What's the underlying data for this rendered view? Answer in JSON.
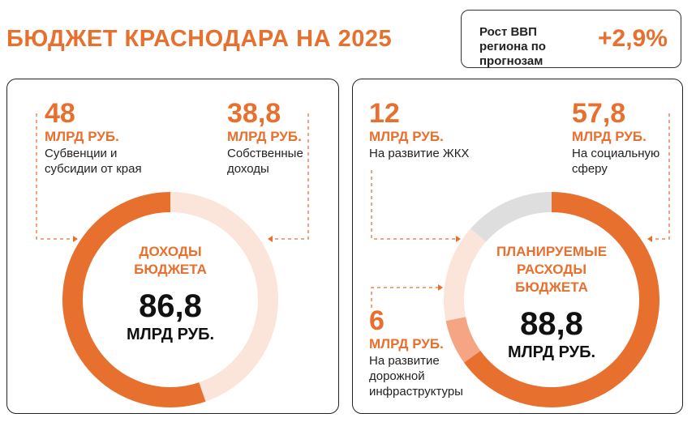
{
  "header": {
    "title": "БЮДЖЕТ КРАСНОДАРА НА 2025"
  },
  "gdp": {
    "label": "Рост ВВП региона по прогнозам",
    "value": "+2,9%"
  },
  "chart_data": [
    {
      "type": "pie",
      "center_title": "ДОХОДЫ БЮДЖЕТА",
      "total": 86.8,
      "total_label": "86,8",
      "unit": "МЛРД РУБ.",
      "categories": [
        "Собственные доходы",
        "Субвенции и субсидии от края"
      ],
      "values": [
        38.8,
        48
      ],
      "value_labels": [
        "38,8",
        "48"
      ],
      "colors": [
        "#fbe4da",
        "#e8702f"
      ]
    },
    {
      "type": "pie",
      "center_title": "ПЛАНИРУЕМЫЕ РАСХОДЫ БЮДЖЕТА",
      "total": 88.8,
      "total_label": "88,8",
      "unit": "МЛРД РУБ.",
      "categories": [
        "На социальную сферу",
        "На развитие дорожной инфраструктуры",
        null,
        "На развитие ЖКХ"
      ],
      "values": [
        57.8,
        6,
        13,
        12
      ],
      "value_labels": [
        "57,8",
        "6",
        null,
        "12"
      ],
      "colors": [
        "#e8702f",
        "#f5a583",
        "#fbe4da",
        "#dedede"
      ]
    }
  ]
}
